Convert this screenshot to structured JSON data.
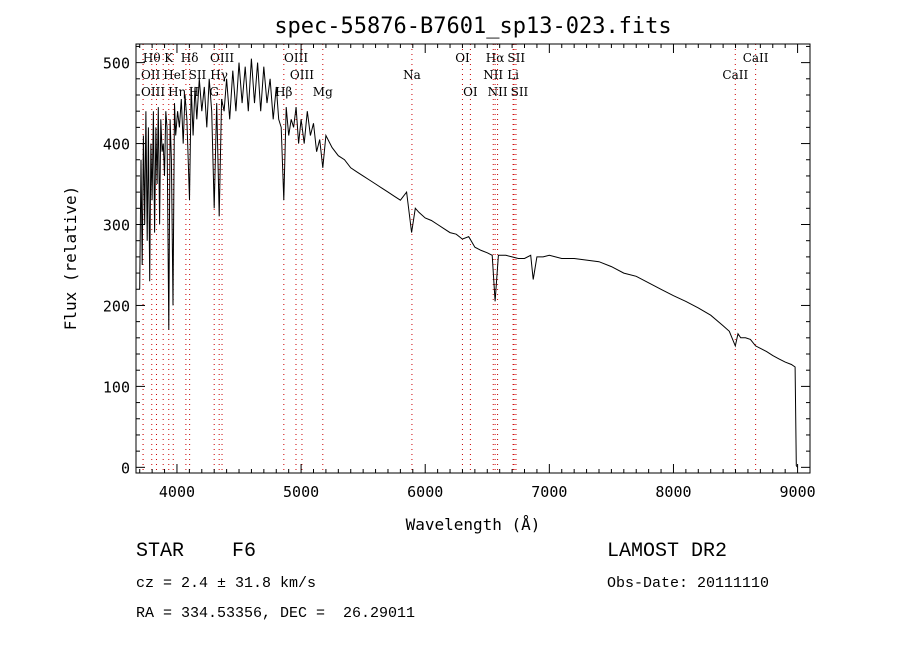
{
  "chart_data": {
    "type": "line",
    "title": "spec-55876-B7601_sp13-023.fits",
    "xlabel": "Wavelength (Å)",
    "ylabel": "Flux (relative)",
    "xlim": [
      3670,
      9100
    ],
    "ylim": [
      -7,
      523
    ],
    "xticks": [
      4000,
      5000,
      6000,
      7000,
      8000,
      9000
    ],
    "yticks": [
      0,
      100,
      200,
      300,
      400,
      500
    ],
    "grid": false,
    "series": [
      {
        "name": "spectrum",
        "x": [
          3700,
          3710,
          3720,
          3730,
          3740,
          3750,
          3760,
          3770,
          3780,
          3790,
          3800,
          3810,
          3820,
          3830,
          3840,
          3850,
          3860,
          3870,
          3880,
          3890,
          3900,
          3910,
          3920,
          3934,
          3945,
          3955,
          3968,
          3980,
          3990,
          4005,
          4020,
          4035,
          4050,
          4065,
          4080,
          4101,
          4115,
          4130,
          4145,
          4160,
          4180,
          4200,
          4220,
          4240,
          4260,
          4280,
          4300,
          4320,
          4340,
          4360,
          4380,
          4400,
          4425,
          4450,
          4475,
          4500,
          4525,
          4550,
          4575,
          4600,
          4625,
          4650,
          4675,
          4700,
          4725,
          4750,
          4775,
          4800,
          4820,
          4840,
          4861,
          4880,
          4900,
          4920,
          4940,
          4960,
          4980,
          5000,
          5025,
          5050,
          5075,
          5100,
          5125,
          5150,
          5175,
          5200,
          5250,
          5300,
          5350,
          5400,
          5450,
          5500,
          5550,
          5600,
          5650,
          5700,
          5750,
          5800,
          5850,
          5890,
          5920,
          5950,
          6000,
          6050,
          6100,
          6150,
          6200,
          6250,
          6300,
          6350,
          6400,
          6450,
          6500,
          6540,
          6563,
          6590,
          6650,
          6700,
          6750,
          6800,
          6850,
          6870,
          6900,
          6950,
          7000,
          7100,
          7200,
          7300,
          7400,
          7500,
          7600,
          7700,
          7800,
          7900,
          8000,
          8100,
          8200,
          8300,
          8400,
          8450,
          8498,
          8520,
          8542,
          8580,
          8620,
          8662,
          8700,
          8750,
          8800,
          8850,
          8900,
          8950,
          8980,
          8990,
          9000
        ],
        "y": [
          220,
          380,
          250,
          410,
          300,
          440,
          280,
          420,
          230,
          400,
          330,
          440,
          290,
          420,
          350,
          445,
          300,
          430,
          390,
          400,
          360,
          440,
          420,
          170,
          430,
          380,
          200,
          450,
          410,
          440,
          420,
          455,
          400,
          460,
          430,
          330,
          470,
          410,
          470,
          430,
          480,
          440,
          470,
          420,
          480,
          440,
          320,
          450,
          310,
          455,
          440,
          480,
          430,
          490,
          440,
          500,
          450,
          495,
          440,
          505,
          450,
          500,
          440,
          495,
          450,
          480,
          430,
          470,
          430,
          420,
          330,
          445,
          410,
          430,
          420,
          445,
          400,
          430,
          400,
          440,
          410,
          425,
          390,
          405,
          370,
          410,
          395,
          385,
          380,
          370,
          365,
          360,
          355,
          350,
          345,
          340,
          335,
          330,
          340,
          290,
          320,
          315,
          308,
          305,
          300,
          295,
          290,
          288,
          282,
          285,
          272,
          268,
          265,
          262,
          205,
          262,
          262,
          260,
          258,
          258,
          262,
          232,
          260,
          260,
          262,
          258,
          258,
          256,
          254,
          248,
          240,
          236,
          228,
          220,
          212,
          205,
          197,
          188,
          175,
          168,
          150,
          165,
          160,
          160,
          158,
          150,
          147,
          143,
          138,
          134,
          130,
          127,
          124,
          2,
          0
        ]
      }
    ],
    "line_markers": [
      {
        "label": "Hθ",
        "wavelength": 3797,
        "row": 1
      },
      {
        "label": "K",
        "wavelength": 3934,
        "row": 1
      },
      {
        "label": "Hδ",
        "wavelength": 4102,
        "row": 1
      },
      {
        "label": "OIII",
        "wavelength": 4363,
        "row": 1
      },
      {
        "label": "OIII",
        "wavelength": 4959,
        "row": 1
      },
      {
        "label": "OII",
        "wavelength": 3727,
        "row": 2
      },
      {
        "label": "HeI",
        "wavelength": 3889,
        "row": 2
      },
      {
        "label": "SII",
        "wavelength": 4072,
        "row": 2
      },
      {
        "label": "Hγ",
        "wavelength": 4340,
        "row": 2
      },
      {
        "label": "OIII",
        "wavelength": 5007,
        "row": 2
      },
      {
        "label": "OIII",
        "wavelength": 3727,
        "row": 3
      },
      {
        "label": "Hη",
        "wavelength": 3835,
        "row": 3
      },
      {
        "label": "H",
        "wavelength": 3970,
        "row": 3
      },
      {
        "label": "G",
        "wavelength": 4300,
        "row": 3
      },
      {
        "label": "Hβ",
        "wavelength": 4861,
        "row": 3
      },
      {
        "label": "Mg",
        "wavelength": 5175,
        "row": 3
      },
      {
        "label": "Na",
        "wavelength": 5893,
        "row": 2
      },
      {
        "label": "OI",
        "wavelength": 6300,
        "row": 1
      },
      {
        "label": "OI",
        "wavelength": 6364,
        "row": 3
      },
      {
        "label": "Hα",
        "wavelength": 6563,
        "row": 1
      },
      {
        "label": "SII",
        "wavelength": 6716,
        "row": 1
      },
      {
        "label": "NII",
        "wavelength": 6548,
        "row": 2
      },
      {
        "label": "Li",
        "wavelength": 6708,
        "row": 2
      },
      {
        "label": "NII",
        "wavelength": 6583,
        "row": 3
      },
      {
        "label": "SII",
        "wavelength": 6731,
        "row": 3
      },
      {
        "label": "CaII",
        "wavelength": 8498,
        "row": 2
      },
      {
        "label": "CaII",
        "wavelength": 8662,
        "row": 1
      }
    ],
    "marker_color": "#cc0000"
  },
  "info": {
    "class_label": "STAR",
    "subclass": "F6",
    "survey": "LAMOST DR2",
    "cz": "cz = 2.4 ± 31.8 km/s",
    "obs_date": "Obs-Date: 20111110",
    "coords": "RA = 334.53356, DEC =  26.29011"
  }
}
